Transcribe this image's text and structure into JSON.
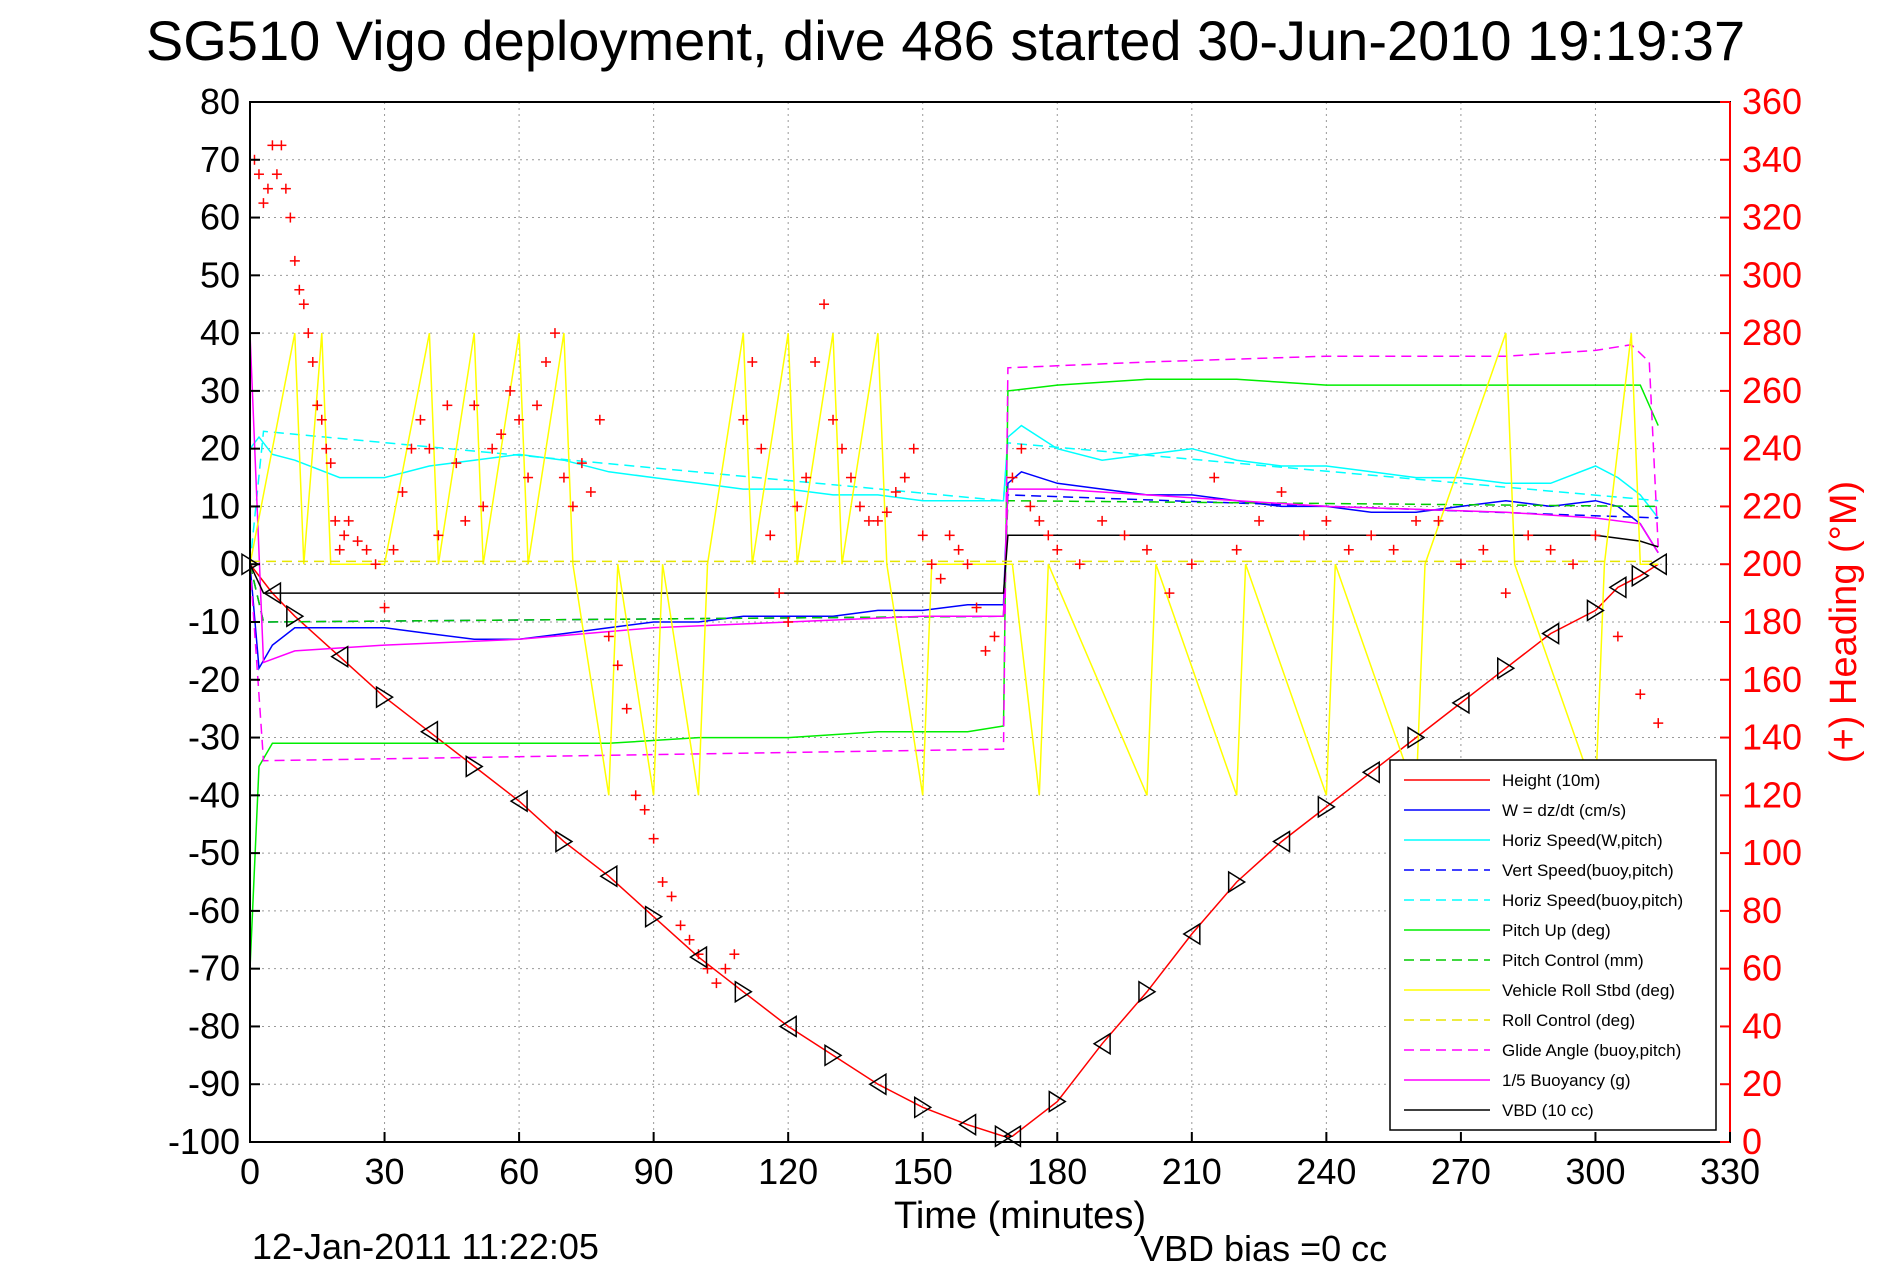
{
  "title": "SG510 Vigo deployment, dive 486 started 30-Jun-2010 19:19:37",
  "footer": {
    "date": "12-Jan-2011 11:22:05",
    "vbd_bias": "VBD bias =0 cc"
  },
  "chart_data": {
    "type": "line",
    "title": "SG510 Vigo deployment, dive 486 started 30-Jun-2010 19:19:37",
    "xlabel": "Time (minutes)",
    "ylabel": "",
    "ylabel_right": "(+) Heading (°M)",
    "xlim": [
      0,
      330
    ],
    "ylim": [
      -100,
      80
    ],
    "ylim_right": [
      0,
      360
    ],
    "xticks": [
      0,
      30,
      60,
      90,
      120,
      150,
      180,
      210,
      240,
      270,
      300,
      330
    ],
    "yticks": [
      -100,
      -90,
      -80,
      -70,
      -60,
      -50,
      -40,
      -30,
      -20,
      -10,
      0,
      10,
      20,
      30,
      40,
      50,
      60,
      70,
      80
    ],
    "yticks_right": [
      0,
      20,
      40,
      60,
      80,
      100,
      120,
      140,
      160,
      180,
      200,
      220,
      240,
      260,
      280,
      300,
      320,
      340,
      360
    ],
    "grid": true,
    "legend_position": "bottom-right",
    "colors": {
      "height": "#ff0000",
      "w": "#0000ff",
      "horiz_speed_w": "#00ffff",
      "vert_speed_buoy": "#0000ff",
      "horiz_speed_buoy": "#00ffff",
      "pitch_up": "#00ee00",
      "pitch_control": "#00cc00",
      "roll": "#ffff00",
      "roll_control": "#e6e600",
      "glide_angle": "#ff00ff",
      "buoyancy": "#ff00ff",
      "vbd": "#000000",
      "heading": "#ff0000",
      "right_axis": "#ff0000"
    },
    "legend": [
      {
        "name": "Height (10m)",
        "color": "#ff0000",
        "dash": false
      },
      {
        "name": "W = dz/dt (cm/s)",
        "color": "#0000ff",
        "dash": false
      },
      {
        "name": "Horiz Speed(W,pitch)",
        "color": "#00ffff",
        "dash": false
      },
      {
        "name": "Vert Speed(buoy,pitch)",
        "color": "#0000ff",
        "dash": true
      },
      {
        "name": "Horiz Speed(buoy,pitch)",
        "color": "#00ffff",
        "dash": true
      },
      {
        "name": "Pitch Up (deg)",
        "color": "#00ee00",
        "dash": false
      },
      {
        "name": "Pitch Control (mm)",
        "color": "#00cc00",
        "dash": true
      },
      {
        "name": "Vehicle Roll Stbd (deg)",
        "color": "#ffff00",
        "dash": false
      },
      {
        "name": "Roll Control (deg)",
        "color": "#e6e600",
        "dash": true
      },
      {
        "name": "Glide Angle (buoy,pitch)",
        "color": "#ff00ff",
        "dash": true
      },
      {
        "name": "1/5 Buoyancy (g)",
        "color": "#ff00ff",
        "dash": false
      },
      {
        "name": "VBD (10 cc)",
        "color": "#000000",
        "dash": false
      }
    ],
    "series": [
      {
        "key": "height",
        "x": [
          0,
          5,
          10,
          20,
          30,
          40,
          50,
          60,
          70,
          80,
          90,
          100,
          110,
          120,
          130,
          140,
          150,
          160,
          168,
          170,
          180,
          190,
          200,
          210,
          220,
          230,
          240,
          250,
          260,
          270,
          280,
          290,
          300,
          305,
          310,
          314
        ],
        "y": [
          0,
          -5,
          -9,
          -16,
          -23,
          -29,
          -35,
          -41,
          -48,
          -54,
          -61,
          -68,
          -74,
          -80,
          -85,
          -90,
          -94,
          -97,
          -99,
          -99,
          -93,
          -83,
          -74,
          -64,
          -55,
          -48,
          -42,
          -36,
          -30,
          -24,
          -18,
          -12,
          -8,
          -4,
          -2,
          0
        ]
      },
      {
        "key": "w",
        "x": [
          0,
          2,
          5,
          10,
          20,
          30,
          40,
          50,
          60,
          70,
          80,
          90,
          100,
          110,
          120,
          130,
          140,
          150,
          160,
          168,
          169,
          172,
          180,
          190,
          200,
          210,
          220,
          230,
          240,
          250,
          260,
          270,
          280,
          290,
          300,
          305,
          310,
          314
        ],
        "y": [
          0,
          -18,
          -14,
          -11,
          -11,
          -11,
          -12,
          -13,
          -13,
          -12,
          -11,
          -10,
          -10,
          -9,
          -9,
          -9,
          -8,
          -8,
          -7,
          -7,
          14,
          16,
          14,
          13,
          12,
          12,
          11,
          10,
          10,
          9,
          9,
          10,
          11,
          10,
          11,
          10,
          7,
          2
        ]
      },
      {
        "key": "horiz_speed_w",
        "x": [
          0,
          2,
          5,
          10,
          20,
          30,
          40,
          50,
          60,
          70,
          80,
          90,
          100,
          110,
          120,
          130,
          140,
          150,
          160,
          168,
          169,
          172,
          180,
          190,
          200,
          210,
          220,
          230,
          240,
          250,
          260,
          270,
          280,
          290,
          300,
          305,
          310,
          314
        ],
        "y": [
          20,
          22,
          19,
          18,
          15,
          15,
          17,
          18,
          19,
          18,
          16,
          15,
          14,
          13,
          13,
          12,
          12,
          11,
          11,
          11,
          22,
          24,
          20,
          18,
          19,
          20,
          18,
          17,
          17,
          16,
          15,
          15,
          14,
          14,
          17,
          15,
          12,
          8
        ]
      },
      {
        "key": "vert_speed_buoy",
        "x": [
          0,
          3,
          168,
          169,
          314
        ],
        "y": [
          0,
          -10,
          -9,
          12,
          8
        ]
      },
      {
        "key": "horiz_speed_buoy",
        "x": [
          0,
          3,
          168,
          169,
          314
        ],
        "y": [
          0,
          23,
          11,
          21,
          11
        ]
      },
      {
        "key": "pitch_up",
        "x": [
          0,
          2,
          5,
          20,
          40,
          60,
          80,
          100,
          120,
          140,
          160,
          168,
          169,
          180,
          200,
          220,
          240,
          260,
          280,
          300,
          310,
          314
        ],
        "y": [
          -70,
          -35,
          -31,
          -31,
          -31,
          -31,
          -31,
          -30,
          -30,
          -29,
          -29,
          -28,
          30,
          31,
          32,
          32,
          31,
          31,
          31,
          31,
          31,
          24
        ]
      },
      {
        "key": "pitch_control",
        "x": [
          0,
          3,
          168,
          169,
          314
        ],
        "y": [
          0,
          -10,
          -9,
          11,
          10
        ]
      },
      {
        "key": "glide_angle",
        "x": [
          0,
          3,
          168,
          169,
          200,
          240,
          280,
          300,
          308,
          312,
          314
        ],
        "y": [
          0,
          -34,
          -32,
          34,
          35,
          36,
          36,
          37,
          38,
          35,
          3
        ]
      },
      {
        "key": "buoyancy",
        "x": [
          0,
          3,
          10,
          30,
          60,
          90,
          120,
          150,
          168,
          169,
          180,
          200,
          240,
          280,
          300,
          310,
          314
        ],
        "y": [
          40,
          -17,
          -15,
          -14,
          -13,
          -11,
          -10,
          -9,
          -9,
          13,
          13,
          12,
          10,
          9,
          8,
          7,
          2
        ]
      },
      {
        "key": "vbd",
        "x": [
          0,
          3,
          168,
          169,
          300,
          310,
          314
        ],
        "y": [
          0,
          -5,
          -5,
          5,
          5,
          4,
          3
        ]
      }
    ],
    "heading_x": [
      1,
      2,
      3,
      4,
      5,
      6,
      7,
      8,
      9,
      10,
      11,
      12,
      13,
      14,
      15,
      16,
      17,
      18,
      19,
      20,
      21,
      22,
      24,
      26,
      28,
      30,
      32,
      34,
      36,
      38,
      40,
      42,
      44,
      46,
      48,
      50,
      52,
      54,
      56,
      58,
      60,
      62,
      64,
      66,
      68,
      70,
      72,
      74,
      76,
      78,
      80,
      82,
      84,
      86,
      88,
      90,
      92,
      94,
      96,
      98,
      100,
      102,
      104,
      106,
      108,
      110,
      112,
      114,
      116,
      118,
      120,
      122,
      124,
      126,
      128,
      130,
      132,
      134,
      136,
      138,
      140,
      142,
      144,
      146,
      148,
      150,
      152,
      154,
      156,
      158,
      160,
      162,
      164,
      166,
      170,
      172,
      174,
      176,
      178,
      180,
      185,
      190,
      195,
      200,
      205,
      210,
      215,
      220,
      225,
      230,
      235,
      240,
      245,
      250,
      255,
      260,
      265,
      270,
      275,
      280,
      285,
      290,
      295,
      300,
      305,
      310,
      314
    ],
    "heading_y": [
      340,
      335,
      325,
      330,
      345,
      335,
      345,
      330,
      320,
      305,
      295,
      290,
      280,
      270,
      255,
      250,
      240,
      235,
      215,
      205,
      210,
      215,
      208,
      205,
      200,
      185,
      205,
      225,
      240,
      250,
      240,
      210,
      255,
      235,
      215,
      255,
      220,
      240,
      245,
      260,
      250,
      230,
      255,
      270,
      280,
      230,
      220,
      235,
      225,
      250,
      175,
      165,
      150,
      120,
      115,
      105,
      90,
      85,
      75,
      70,
      65,
      60,
      55,
      60,
      65,
      250,
      270,
      240,
      210,
      190,
      180,
      220,
      230,
      270,
      290,
      250,
      240,
      230,
      220,
      215,
      215,
      218,
      225,
      230,
      240,
      210,
      200,
      195,
      210,
      205,
      200,
      185,
      170,
      175,
      230,
      240,
      220,
      215,
      210,
      205,
      200,
      215,
      210,
      205,
      190,
      200,
      230,
      205,
      215,
      225,
      210,
      215,
      205,
      210,
      205,
      215,
      215,
      200,
      205,
      190,
      210,
      205,
      200,
      210,
      175,
      155,
      145
    ]
  }
}
